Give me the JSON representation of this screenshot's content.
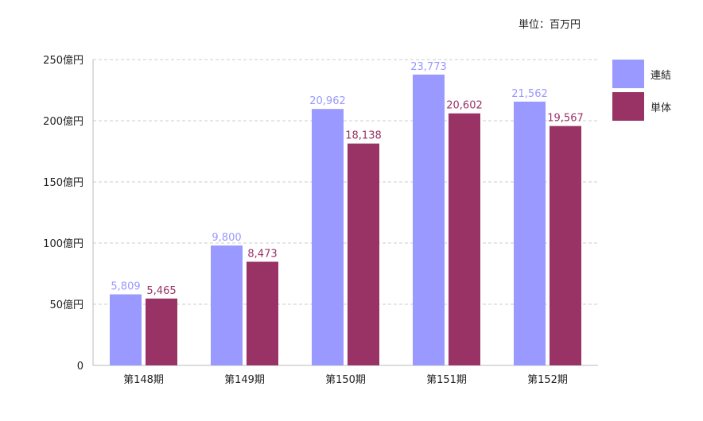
{
  "unit_label": "単位：百万円",
  "colors": {
    "consolidated": "#9999ff",
    "standalone": "#993366",
    "grid": "#cccccc",
    "axis": "#bbbbbb"
  },
  "chart_data": {
    "type": "bar",
    "categories": [
      "第148期",
      "第149期",
      "第150期",
      "第151期",
      "第152期"
    ],
    "series": [
      {
        "name": "連結",
        "values": [
          5809,
          9800,
          20962,
          23773,
          21562
        ],
        "labels": [
          "5,809",
          "9,800",
          "20,962",
          "23,773",
          "21,562"
        ]
      },
      {
        "name": "単体",
        "values": [
          5465,
          8473,
          18138,
          20602,
          19567
        ],
        "labels": [
          "5,465",
          "8,473",
          "18,138",
          "20,602",
          "19,567"
        ]
      }
    ],
    "ylim": [
      0,
      25000
    ],
    "yticks": [
      {
        "value": 0,
        "label": "0"
      },
      {
        "value": 5000,
        "label": "50億円"
      },
      {
        "value": 10000,
        "label": "100億円"
      },
      {
        "value": 15000,
        "label": "150億円"
      },
      {
        "value": 20000,
        "label": "200億円"
      },
      {
        "value": 25000,
        "label": "250億円"
      }
    ],
    "grid": true,
    "legend_position": "right"
  }
}
